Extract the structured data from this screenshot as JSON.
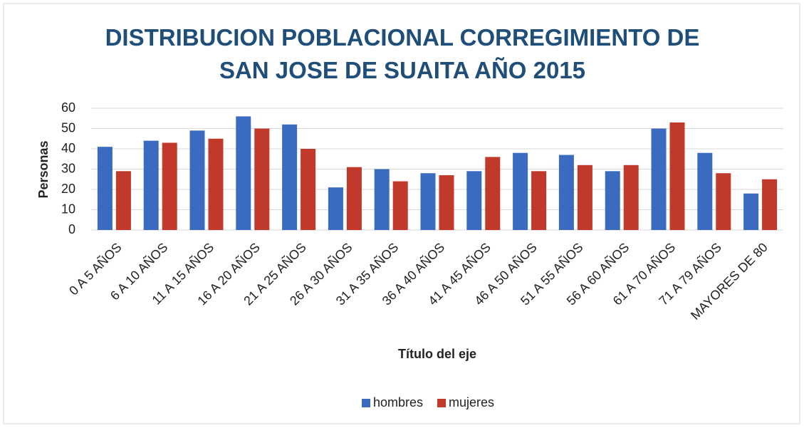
{
  "chart_data": {
    "type": "bar",
    "title": "DISTRIBUCION POBLACIONAL CORREGIMIENTO DE SAN JOSE DE SUAITA AÑO 2015",
    "xlabel": "Título del eje",
    "ylabel": "Personas",
    "categories": [
      "0 A 5 AÑOS",
      "6 A 10 AÑOS",
      "11 A 15 AÑOS",
      "16 A 20 AÑOS",
      "21 A 25 AÑOS",
      "26 A 30 AÑOS",
      "31 A 35 AÑOS",
      "36 A 40 AÑOS",
      "41 A 45 AÑOS",
      "46 A 50 AÑOS",
      "51 A 55 AÑOS",
      "56 A 60 AÑOS",
      "61 A 70 AÑOS",
      "71 A 79 AÑOS",
      "MAYORES DE 80"
    ],
    "series": [
      {
        "name": "hombres",
        "color": "#3a6bc0",
        "values": [
          41,
          44,
          49,
          56,
          52,
          21,
          30,
          28,
          29,
          38,
          37,
          29,
          50,
          38,
          18
        ]
      },
      {
        "name": "mujeres",
        "color": "#c0392b",
        "values": [
          29,
          43,
          45,
          50,
          40,
          31,
          24,
          27,
          36,
          29,
          32,
          32,
          53,
          28,
          25
        ]
      }
    ],
    "ylim": [
      0,
      60
    ],
    "yticks": [
      0,
      10,
      20,
      30,
      40,
      50,
      60
    ],
    "grid": true,
    "legend": "bottom"
  }
}
